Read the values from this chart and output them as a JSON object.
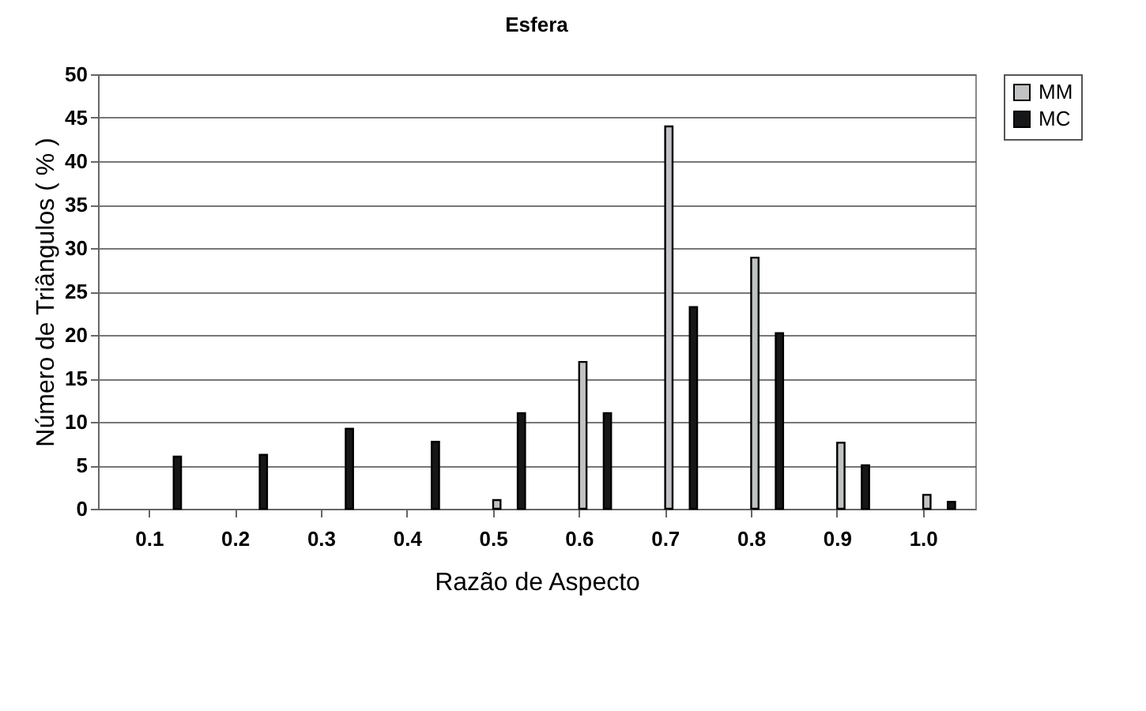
{
  "chart_data": {
    "type": "bar",
    "title": "Esfera",
    "xlabel": "Razão de Aspecto",
    "ylabel": "Número de Triângulos ( % )",
    "categories": [
      "0.1",
      "0.2",
      "0.3",
      "0.4",
      "0.5",
      "0.6",
      "0.7",
      "0.8",
      "0.9",
      "1.0"
    ],
    "series": [
      {
        "name": "MM",
        "color": "#c0c2c4",
        "values": [
          null,
          null,
          null,
          null,
          1,
          16.9,
          44,
          28.9,
          7.6,
          1.6
        ]
      },
      {
        "name": "MC",
        "color": "#161718",
        "values": [
          6,
          6.2,
          9.2,
          7.7,
          11,
          11,
          23.2,
          20.2,
          5,
          0.8
        ]
      }
    ],
    "ylim": [
      0,
      50
    ],
    "yticks": [
      0,
      5,
      10,
      15,
      20,
      25,
      30,
      35,
      40,
      45,
      50
    ],
    "grid": "y",
    "legend": "right"
  }
}
